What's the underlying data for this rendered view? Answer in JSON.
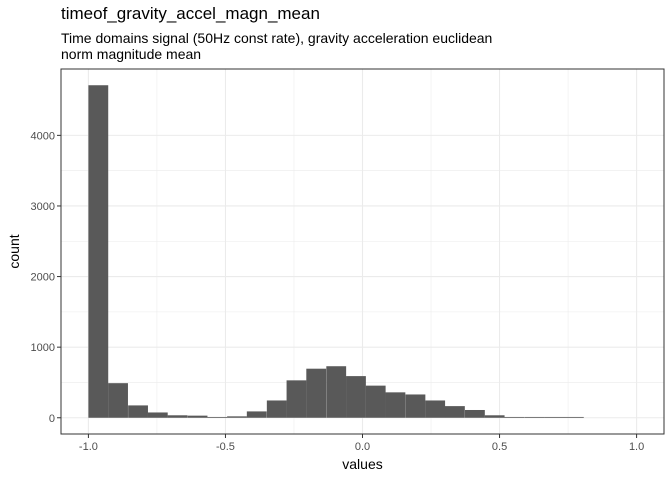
{
  "chart_data": {
    "type": "bar",
    "title": "timeof_gravity_accel_magn_mean",
    "subtitle_lines": [
      "Time domains signal (50Hz const rate), gravity acceleration euclidean",
      "norm magnitude mean"
    ],
    "xlabel": "values",
    "ylabel": "count",
    "xlim": [
      -1.1,
      1.1
    ],
    "ylim": [
      -230,
      4940
    ],
    "x_ticks": [
      -1.0,
      -0.5,
      0.0,
      0.5,
      1.0
    ],
    "x_tick_labels": [
      "-1.0",
      "-0.5",
      "0.0",
      "0.5",
      "1.0"
    ],
    "y_ticks": [
      0,
      1000,
      2000,
      3000,
      4000
    ],
    "y_tick_labels": [
      "0",
      "1000",
      "2000",
      "3000",
      "4000"
    ],
    "grid": true,
    "bar_color": "#595959",
    "bin_width": 0.0723,
    "bins": [
      {
        "x0": -1.0,
        "count": 4710
      },
      {
        "x0": -0.928,
        "count": 490
      },
      {
        "x0": -0.855,
        "count": 175
      },
      {
        "x0": -0.783,
        "count": 75
      },
      {
        "x0": -0.711,
        "count": 35
      },
      {
        "x0": -0.638,
        "count": 30
      },
      {
        "x0": -0.566,
        "count": 5
      },
      {
        "x0": -0.494,
        "count": 20
      },
      {
        "x0": -0.422,
        "count": 90
      },
      {
        "x0": -0.349,
        "count": 245
      },
      {
        "x0": -0.277,
        "count": 530
      },
      {
        "x0": -0.205,
        "count": 695
      },
      {
        "x0": -0.132,
        "count": 730
      },
      {
        "x0": -0.06,
        "count": 590
      },
      {
        "x0": 0.012,
        "count": 455
      },
      {
        "x0": 0.084,
        "count": 360
      },
      {
        "x0": 0.157,
        "count": 330
      },
      {
        "x0": 0.229,
        "count": 245
      },
      {
        "x0": 0.301,
        "count": 165
      },
      {
        "x0": 0.374,
        "count": 110
      },
      {
        "x0": 0.446,
        "count": 35
      },
      {
        "x0": 0.518,
        "count": 10
      },
      {
        "x0": 0.591,
        "count": 8
      },
      {
        "x0": 0.663,
        "count": 6
      },
      {
        "x0": 0.735,
        "count": 4
      }
    ]
  }
}
